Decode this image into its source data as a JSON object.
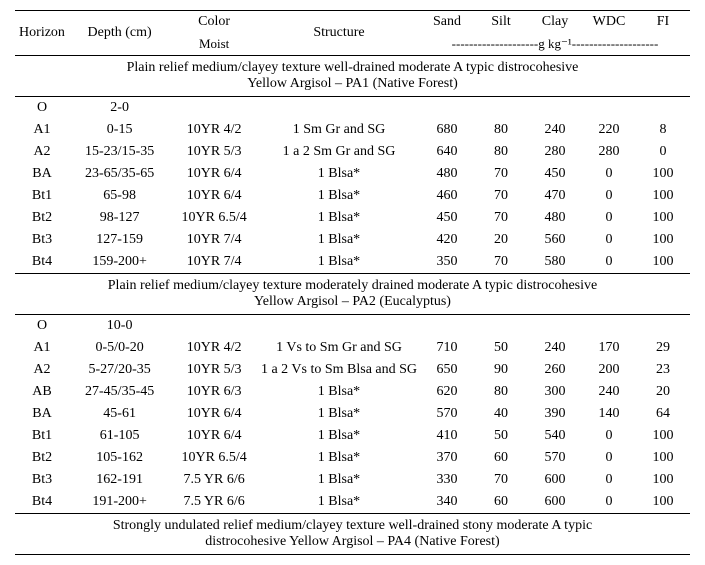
{
  "headers": {
    "horizon": "Horizon",
    "depth": "Depth (cm)",
    "color": "Color",
    "color_sub": "Moist",
    "structure": "Structure",
    "sand": "Sand",
    "silt": "Silt",
    "clay": "Clay",
    "wdc": "WDC",
    "fi": "FI",
    "units": "--------------------g kg⁻¹--------------------"
  },
  "sections": [
    {
      "title_l1": "Plain relief medium/clayey texture well-drained moderate A typic distrocohesive",
      "title_l2": "Yellow Argisol – PA1 (Native Forest)",
      "rows": [
        {
          "h": "O",
          "d": "2-0",
          "c": "",
          "s": "",
          "sa": "",
          "si": "",
          "cl": "",
          "w": "",
          "f": ""
        },
        {
          "h": "A1",
          "d": "0-15",
          "c": "10YR 4/2",
          "s": "1 Sm Gr and SG",
          "sa": "680",
          "si": "80",
          "cl": "240",
          "w": "220",
          "f": "8"
        },
        {
          "h": "A2",
          "d": "15-23/15-35",
          "c": "10YR 5/3",
          "s": "1 a 2 Sm Gr and SG",
          "sa": "640",
          "si": "80",
          "cl": "280",
          "w": "280",
          "f": "0"
        },
        {
          "h": "BA",
          "d": "23-65/35-65",
          "c": "10YR 6/4",
          "s": "1 Blsa*",
          "sa": "480",
          "si": "70",
          "cl": "450",
          "w": "0",
          "f": "100"
        },
        {
          "h": "Bt1",
          "d": "65-98",
          "c": "10YR 6/4",
          "s": "1 Blsa*",
          "sa": "460",
          "si": "70",
          "cl": "470",
          "w": "0",
          "f": "100"
        },
        {
          "h": "Bt2",
          "d": "98-127",
          "c": "10YR 6.5/4",
          "s": "1 Blsa*",
          "sa": "450",
          "si": "70",
          "cl": "480",
          "w": "0",
          "f": "100"
        },
        {
          "h": "Bt3",
          "d": "127-159",
          "c": "10YR 7/4",
          "s": "1 Blsa*",
          "sa": "420",
          "si": "20",
          "cl": "560",
          "w": "0",
          "f": "100"
        },
        {
          "h": "Bt4",
          "d": "159-200+",
          "c": "10YR 7/4",
          "s": "1 Blsa*",
          "sa": "350",
          "si": "70",
          "cl": "580",
          "w": "0",
          "f": "100"
        }
      ]
    },
    {
      "title_l1": "Plain relief medium/clayey texture moderately drained moderate A typic distrocohesive",
      "title_l2": "Yellow Argisol – PA2 (Eucalyptus)",
      "rows": [
        {
          "h": "O",
          "d": "10-0",
          "c": "",
          "s": "",
          "sa": "",
          "si": "",
          "cl": "",
          "w": "",
          "f": ""
        },
        {
          "h": "A1",
          "d": "0-5/0-20",
          "c": "10YR 4/2",
          "s": "1 Vs to Sm Gr and SG",
          "sa": "710",
          "si": "50",
          "cl": "240",
          "w": "170",
          "f": "29"
        },
        {
          "h": "A2",
          "d": "5-27/20-35",
          "c": "10YR 5/3",
          "s": "1 a 2 Vs to Sm Blsa and SG",
          "sa": "650",
          "si": "90",
          "cl": "260",
          "w": "200",
          "f": "23"
        },
        {
          "h": "AB",
          "d": "27-45/35-45",
          "c": "10YR 6/3",
          "s": "1 Blsa*",
          "sa": "620",
          "si": "80",
          "cl": "300",
          "w": "240",
          "f": "20"
        },
        {
          "h": "BA",
          "d": "45-61",
          "c": "10YR 6/4",
          "s": "1 Blsa*",
          "sa": "570",
          "si": "40",
          "cl": "390",
          "w": "140",
          "f": "64"
        },
        {
          "h": "Bt1",
          "d": "61-105",
          "c": "10YR 6/4",
          "s": "1 Blsa*",
          "sa": "410",
          "si": "50",
          "cl": "540",
          "w": "0",
          "f": "100"
        },
        {
          "h": "Bt2",
          "d": "105-162",
          "c": "10YR 6.5/4",
          "s": "1 Blsa*",
          "sa": "370",
          "si": "60",
          "cl": "570",
          "w": "0",
          "f": "100"
        },
        {
          "h": "Bt3",
          "d": "162-191",
          "c": "7.5 YR 6/6",
          "s": "1 Blsa*",
          "sa": "330",
          "si": "70",
          "cl": "600",
          "w": "0",
          "f": "100"
        },
        {
          "h": "Bt4",
          "d": "191-200+",
          "c": "7.5 YR 6/6",
          "s": "1 Blsa*",
          "sa": "340",
          "si": "60",
          "cl": "600",
          "w": "0",
          "f": "100"
        }
      ]
    },
    {
      "title_l1": "Strongly undulated relief medium/clayey texture well-drained stony moderate A typic",
      "title_l2": "distrocohesive Yellow Argisol – PA4 (Native Forest)",
      "rows": []
    }
  ]
}
